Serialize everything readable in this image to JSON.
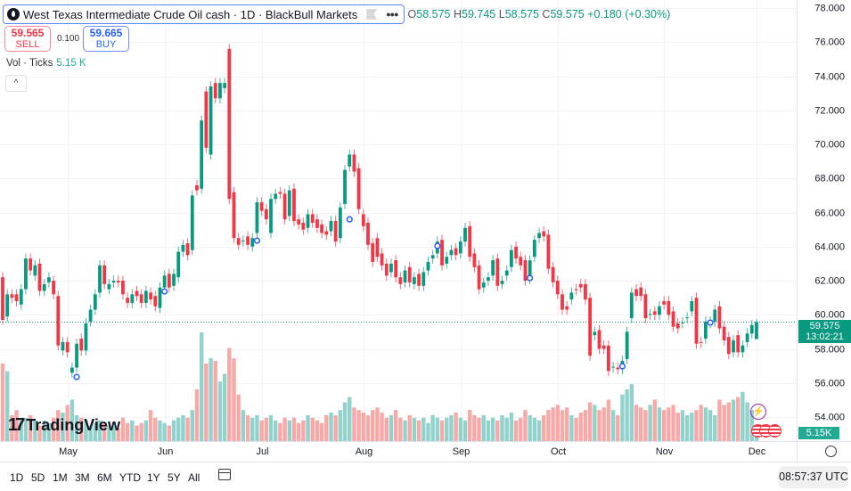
{
  "header": {
    "title": "West Texas Intermediate Crude Oil cash · 1D · BlackBull Markets",
    "ohlc": {
      "o_label": "O",
      "o": "58.575",
      "h_label": "H",
      "h": "59.745",
      "l_label": "L",
      "l": "58.575",
      "c_label": "C",
      "c": "59.575",
      "change": "+0.180 (+0.30%)"
    },
    "sell": {
      "price": "59.565",
      "label": "SELL"
    },
    "buy": {
      "price": "59.665",
      "label": "BUY"
    },
    "spread": "0.100",
    "volume_label": "Vol · Ticks",
    "volume_value": "5.15 K",
    "collapse_icon": "chevron-up-icon"
  },
  "logo": "TradingView",
  "price_tag": {
    "price": "59.575",
    "countdown": "13:02:21"
  },
  "volume_tag": "5.15K",
  "timeframes": [
    "1D",
    "5D",
    "1M",
    "3M",
    "6M",
    "YTD",
    "1Y",
    "5Y",
    "All"
  ],
  "clock": "08:57:37 UTC",
  "colors": {
    "up": "#089981",
    "down": "#f23645",
    "vol_up": "#92d2cc",
    "vol_down": "#f7a9a7",
    "event": "#2962ff"
  },
  "chart_data": {
    "type": "candlestick",
    "title": "West Texas Intermediate Crude Oil cash · 1D",
    "y_ticks": [
      "78.000",
      "76.000",
      "74.000",
      "72.000",
      "70.000",
      "68.000",
      "66.000",
      "64.000",
      "62.000",
      "60.000",
      "58.000",
      "56.000",
      "54.000"
    ],
    "ylim": [
      54,
      78
    ],
    "x_ticks": [
      {
        "label": "May",
        "index": 14
      },
      {
        "label": "Jun",
        "index": 35
      },
      {
        "label": "Jul",
        "index": 56
      },
      {
        "label": "Aug",
        "index": 78
      },
      {
        "label": "Sep",
        "index": 99
      },
      {
        "label": "Oct",
        "index": 120
      },
      {
        "label": "Nov",
        "index": 143
      },
      {
        "label": "Dec",
        "index": 163
      }
    ],
    "last": {
      "o": 58.575,
      "h": 59.745,
      "l": 58.575,
      "c": 59.575
    },
    "oc": [
      [
        62.2,
        59.7
      ],
      [
        59.9,
        61.2
      ],
      [
        61.2,
        61.0
      ],
      [
        61.2,
        60.8
      ],
      [
        60.6,
        61.5
      ],
      [
        61.5,
        63.3
      ],
      [
        63.3,
        62.6
      ],
      [
        62.3,
        62.9
      ],
      [
        63.0,
        61.4
      ],
      [
        61.4,
        61.8
      ],
      [
        61.9,
        62.2
      ],
      [
        62.0,
        61.2
      ],
      [
        61.1,
        58.2
      ],
      [
        57.9,
        58.4
      ],
      [
        58.4,
        57.8
      ],
      [
        56.6,
        56.9
      ],
      [
        56.9,
        58.3
      ],
      [
        58.6,
        57.9
      ],
      [
        57.9,
        59.5
      ],
      [
        59.6,
        60.3
      ],
      [
        60.3,
        61.2
      ],
      [
        61.3,
        62.9
      ],
      [
        62.9,
        61.8
      ],
      [
        61.5,
        61.8
      ],
      [
        61.9,
        62.0
      ],
      [
        62.0,
        61.9
      ],
      [
        62.0,
        61.2
      ],
      [
        61.0,
        60.7
      ],
      [
        60.7,
        61.2
      ],
      [
        61.4,
        61.1
      ],
      [
        61.2,
        60.7
      ],
      [
        60.7,
        61.4
      ],
      [
        61.3,
        60.9
      ],
      [
        61.1,
        60.5
      ],
      [
        60.4,
        61.6
      ],
      [
        61.6,
        62.3
      ],
      [
        62.4,
        61.6
      ],
      [
        61.7,
        62.4
      ],
      [
        62.2,
        63.7
      ],
      [
        63.7,
        64.1
      ],
      [
        64.2,
        63.5
      ],
      [
        63.8,
        67.0
      ],
      [
        67.6,
        67.3
      ],
      [
        67.4,
        71.4
      ],
      [
        73.1,
        69.8
      ],
      [
        69.4,
        73.4
      ],
      [
        73.6,
        72.7
      ],
      [
        72.7,
        73.6
      ],
      [
        73.3,
        73.6
      ],
      [
        75.6,
        66.8
      ],
      [
        67.2,
        64.5
      ],
      [
        64.5,
        64.1
      ],
      [
        64.3,
        64.35
      ],
      [
        64.6,
        64.1
      ],
      [
        64.0,
        64.5
      ],
      [
        64.8,
        66.6
      ],
      [
        66.6,
        66.1
      ],
      [
        66.2,
        65.6
      ],
      [
        64.8,
        66.8
      ],
      [
        66.8,
        67.1
      ],
      [
        67.2,
        67.1
      ],
      [
        67.1,
        65.6
      ],
      [
        65.8,
        67.3
      ],
      [
        67.4,
        65.5
      ],
      [
        65.6,
        65.3
      ],
      [
        65.4,
        65.0
      ],
      [
        65.1,
        65.9
      ],
      [
        65.9,
        65.4
      ],
      [
        65.6,
        65.1
      ],
      [
        65.3,
        64.8
      ],
      [
        64.9,
        64.7
      ],
      [
        64.9,
        65.5
      ],
      [
        65.5,
        64.3
      ],
      [
        64.5,
        66.3
      ],
      [
        66.5,
        68.5
      ],
      [
        68.7,
        69.4
      ],
      [
        69.4,
        68.4
      ],
      [
        68.6,
        66.2
      ],
      [
        65.9,
        65.2
      ],
      [
        65.4,
        64.1
      ],
      [
        64.2,
        63.1
      ],
      [
        64.5,
        63.4
      ],
      [
        63.6,
        62.9
      ],
      [
        63.0,
        62.3
      ],
      [
        62.5,
        63.0
      ],
      [
        63.2,
        62.2
      ],
      [
        62.2,
        61.8
      ],
      [
        61.9,
        62.6
      ],
      [
        62.8,
        61.9
      ],
      [
        61.8,
        62.2
      ],
      [
        62.4,
        61.7
      ],
      [
        61.7,
        62.5
      ],
      [
        62.6,
        63.1
      ],
      [
        63.3,
        63.5
      ],
      [
        63.6,
        64.3
      ],
      [
        64.4,
        62.9
      ],
      [
        63.0,
        63.4
      ],
      [
        63.5,
        63.8
      ],
      [
        63.9,
        63.5
      ],
      [
        63.6,
        64.3
      ],
      [
        64.3,
        65.1
      ],
      [
        65.2,
        63.4
      ],
      [
        63.6,
        62.8
      ],
      [
        62.9,
        61.5
      ],
      [
        61.6,
        61.9
      ],
      [
        62.0,
        62.2
      ],
      [
        62.3,
        63.2
      ],
      [
        63.3,
        61.7
      ],
      [
        61.8,
        62.0
      ],
      [
        62.3,
        62.6
      ],
      [
        62.8,
        63.8
      ],
      [
        64.0,
        63.3
      ],
      [
        63.4,
        62.9
      ],
      [
        63.2,
        62.0
      ],
      [
        62.1,
        63.2
      ],
      [
        63.4,
        64.4
      ],
      [
        64.5,
        64.8
      ],
      [
        64.9,
        64.6
      ],
      [
        64.7,
        62.7
      ],
      [
        62.8,
        61.9
      ],
      [
        62.0,
        61.2
      ],
      [
        61.2,
        60.3
      ],
      [
        60.5,
        60.3
      ],
      [
        60.9,
        61.3
      ],
      [
        61.5,
        61.45
      ],
      [
        61.8,
        61.6
      ],
      [
        61.8,
        60.9
      ],
      [
        61.0,
        57.6
      ],
      [
        58.8,
        59.0
      ],
      [
        59.1,
        58.0
      ],
      [
        58.2,
        58.0
      ],
      [
        58.2,
        56.7
      ],
      [
        56.9,
        56.95
      ],
      [
        56.9,
        56.8
      ],
      [
        56.8,
        57.3
      ],
      [
        57.4,
        59.0
      ],
      [
        59.8,
        61.3
      ],
      [
        61.5,
        61.1
      ],
      [
        61.6,
        61.1
      ],
      [
        61.2,
        59.8
      ],
      [
        60.0,
        60.05
      ],
      [
        60.2,
        60.0
      ],
      [
        60.0,
        60.5
      ],
      [
        60.8,
        60.6
      ],
      [
        60.8,
        60.0
      ],
      [
        60.2,
        59.3
      ],
      [
        59.5,
        59.2
      ],
      [
        59.5,
        59.55
      ],
      [
        59.8,
        59.85
      ],
      [
        60.2,
        60.8
      ],
      [
        61.0,
        58.3
      ],
      [
        58.4,
        58.35
      ],
      [
        58.6,
        59.6
      ],
      [
        59.5,
        59.6
      ],
      [
        59.6,
        60.3
      ],
      [
        60.5,
        59.2
      ],
      [
        59.3,
        58.5
      ],
      [
        58.7,
        57.7
      ],
      [
        57.8,
        58.5
      ],
      [
        58.8,
        57.8
      ],
      [
        57.8,
        58.2
      ],
      [
        58.4,
        58.9
      ],
      [
        58.9,
        59.4
      ],
      [
        58.575,
        59.575
      ]
    ],
    "volume_k": [
      30,
      27,
      10,
      12,
      8,
      9,
      10,
      8,
      6,
      8,
      7,
      9,
      12,
      11,
      14,
      16,
      10,
      9,
      8,
      6,
      7,
      8,
      7,
      6,
      7,
      5,
      9,
      7,
      8,
      6,
      7,
      8,
      12,
      9,
      8,
      7,
      6,
      8,
      9,
      10,
      9,
      12,
      20,
      42,
      30,
      32,
      31,
      23,
      26,
      36,
      32,
      18,
      12,
      10,
      9,
      10,
      8,
      9,
      10,
      8,
      7,
      9,
      8,
      9,
      7,
      8,
      10,
      9,
      8,
      7,
      10,
      11,
      10,
      12,
      15,
      17,
      13,
      12,
      11,
      10,
      12,
      13,
      11,
      9,
      10,
      12,
      9,
      8,
      10,
      9,
      8,
      9,
      7,
      10,
      9,
      8,
      9,
      10,
      11,
      9,
      8,
      12,
      10,
      9,
      10,
      8,
      9,
      8,
      10,
      9,
      11,
      8,
      9,
      12,
      10,
      9,
      8,
      10,
      12,
      13,
      14,
      12,
      13,
      10,
      9,
      11,
      12,
      15,
      14,
      12,
      13,
      16,
      12,
      10,
      18,
      20,
      22,
      14,
      13,
      12,
      14,
      16,
      13,
      12,
      13,
      14,
      11,
      12,
      10,
      11,
      12,
      14,
      13,
      12,
      10,
      16,
      14,
      15,
      16,
      17,
      19,
      15,
      12,
      5.15
    ],
    "event_markers": [
      {
        "index": 16,
        "price": 56.35
      },
      {
        "index": 35,
        "price": 61.37
      },
      {
        "index": 55,
        "price": 64.35
      },
      {
        "index": 75,
        "price": 65.6
      },
      {
        "index": 94,
        "price": 64.04
      },
      {
        "index": 114,
        "price": 62.16
      },
      {
        "index": 134,
        "price": 56.98
      },
      {
        "index": 153,
        "price": 59.54
      }
    ],
    "current_price": 59.575
  }
}
